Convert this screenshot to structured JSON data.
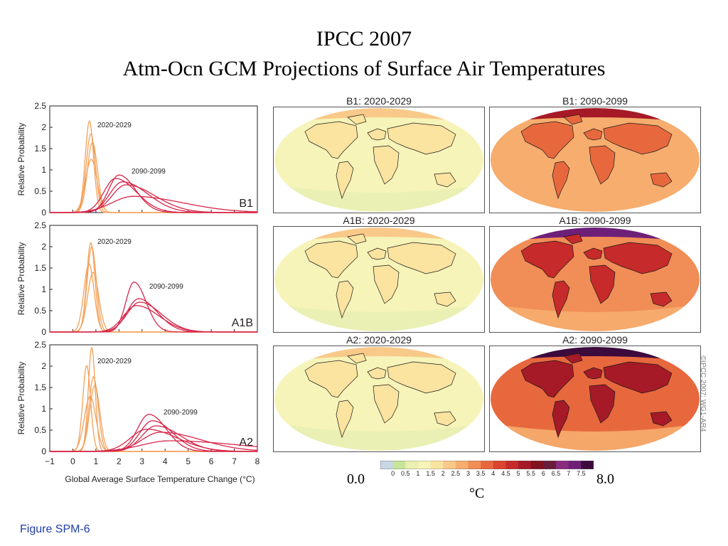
{
  "slide": {
    "title_line1": "IPCC 2007",
    "title_line2": "Atm-Ocn GCM Projections of Surface Air Temperatures",
    "figure_label": "Figure SPM-6",
    "copyright": "©IPCC 2007: WG1-AR4"
  },
  "colors": {
    "near_term": "#f4a15a",
    "late_century": "#d7264a",
    "axis": "#231f20",
    "figure_label": "#1f3ea8"
  },
  "chart_data": [
    {
      "type": "line",
      "scenario": "B1",
      "ylabel": "Relative Probability",
      "xlabel": "Global Average Surface Temperature Change (°C)",
      "xlim": [
        -1,
        8
      ],
      "ylim": [
        0,
        2.5
      ],
      "x_ticks": [
        "−1",
        "0",
        "1",
        "2",
        "3",
        "4",
        "5",
        "6",
        "7",
        "8"
      ],
      "y_ticks": [
        "0",
        "0.5",
        "1",
        "1.5",
        "2",
        "2.5"
      ],
      "series_labels": [
        "2020-2029",
        "2090-2099"
      ],
      "curves": [
        {
          "period": "2020-2029",
          "peak_x": 0.72,
          "peak_y": 2.15,
          "width": 0.18,
          "skew": 1.0
        },
        {
          "period": "2020-2029",
          "peak_x": 0.78,
          "peak_y": 1.85,
          "width": 0.2,
          "skew": 1.0
        },
        {
          "period": "2020-2029",
          "peak_x": 0.85,
          "peak_y": 1.65,
          "width": 0.22,
          "skew": 1.0
        },
        {
          "period": "2020-2029",
          "peak_x": 0.8,
          "peak_y": 1.25,
          "width": 0.25,
          "skew": 1.0
        },
        {
          "period": "2090-2099",
          "peak_x": 2.0,
          "peak_y": 0.88,
          "width": 0.45,
          "skew": 1.6
        },
        {
          "period": "2090-2099",
          "peak_x": 1.85,
          "peak_y": 0.8,
          "width": 0.5,
          "skew": 1.8
        },
        {
          "period": "2090-2099",
          "peak_x": 2.15,
          "peak_y": 0.72,
          "width": 0.55,
          "skew": 2.0
        },
        {
          "period": "2090-2099",
          "peak_x": 2.3,
          "peak_y": 0.65,
          "width": 0.6,
          "skew": 2.1
        },
        {
          "period": "2090-2099",
          "peak_x": 2.6,
          "peak_y": 0.38,
          "width": 0.9,
          "skew": 2.4
        }
      ]
    },
    {
      "type": "line",
      "scenario": "A1B",
      "ylabel": "Relative Probability",
      "xlabel": "Global Average Surface Temperature Change (°C)",
      "xlim": [
        -1,
        8
      ],
      "ylim": [
        0,
        2.5
      ],
      "x_ticks": [
        "−1",
        "0",
        "1",
        "2",
        "3",
        "4",
        "5",
        "6",
        "7",
        "8"
      ],
      "y_ticks": [
        "0",
        "0.5",
        "1",
        "1.5",
        "2",
        "2.5"
      ],
      "series_labels": [
        "2020-2029",
        "2090-2099"
      ],
      "curves": [
        {
          "period": "2020-2029",
          "peak_x": 0.78,
          "peak_y": 2.1,
          "width": 0.18,
          "skew": 1.0
        },
        {
          "period": "2020-2029",
          "peak_x": 0.82,
          "peak_y": 2.0,
          "width": 0.2,
          "skew": 1.0
        },
        {
          "period": "2020-2029",
          "peak_x": 0.7,
          "peak_y": 1.6,
          "width": 0.22,
          "skew": 1.0
        },
        {
          "period": "2020-2029",
          "peak_x": 0.88,
          "peak_y": 1.4,
          "width": 0.24,
          "skew": 1.0
        },
        {
          "period": "2090-2099",
          "peak_x": 2.65,
          "peak_y": 1.17,
          "width": 0.35,
          "skew": 1.5
        },
        {
          "period": "2090-2099",
          "peak_x": 2.85,
          "peak_y": 0.78,
          "width": 0.5,
          "skew": 1.6
        },
        {
          "period": "2090-2099",
          "peak_x": 2.9,
          "peak_y": 0.7,
          "width": 0.55,
          "skew": 1.7
        },
        {
          "period": "2090-2099",
          "peak_x": 2.75,
          "peak_y": 0.62,
          "width": 0.55,
          "skew": 1.8
        }
      ]
    },
    {
      "type": "line",
      "scenario": "A2",
      "ylabel": "Relative Probability",
      "xlabel": "Global Average Surface Temperature Change (°C)",
      "xlim": [
        -1,
        8
      ],
      "ylim": [
        0,
        2.5
      ],
      "x_ticks": [
        "−1",
        "0",
        "1",
        "2",
        "3",
        "4",
        "5",
        "6",
        "7",
        "8"
      ],
      "y_ticks": [
        "0",
        "0.5",
        "1",
        "1.5",
        "2",
        "2.5"
      ],
      "series_labels": [
        "2020-2029",
        "2090-2099"
      ],
      "curves": [
        {
          "period": "2020-2029",
          "peak_x": 0.82,
          "peak_y": 2.45,
          "width": 0.15,
          "skew": 1.0
        },
        {
          "period": "2020-2029",
          "peak_x": 0.6,
          "peak_y": 2.02,
          "width": 0.17,
          "skew": 1.0
        },
        {
          "period": "2020-2029",
          "peak_x": 0.9,
          "peak_y": 1.75,
          "width": 0.2,
          "skew": 1.0
        },
        {
          "period": "2020-2029",
          "peak_x": 0.95,
          "peak_y": 1.55,
          "width": 0.22,
          "skew": 1.0
        },
        {
          "period": "2020-2029",
          "peak_x": 0.75,
          "peak_y": 1.3,
          "width": 0.25,
          "skew": 1.0
        },
        {
          "period": "2090-2099",
          "peak_x": 3.3,
          "peak_y": 0.87,
          "width": 0.5,
          "skew": 1.5
        },
        {
          "period": "2090-2099",
          "peak_x": 3.45,
          "peak_y": 0.72,
          "width": 0.55,
          "skew": 1.6
        },
        {
          "period": "2090-2099",
          "peak_x": 3.6,
          "peak_y": 0.6,
          "width": 0.6,
          "skew": 1.8
        },
        {
          "period": "2090-2099",
          "peak_x": 3.2,
          "peak_y": 0.52,
          "width": 0.7,
          "skew": 1.9
        },
        {
          "period": "2090-2099",
          "peak_x": 3.8,
          "peak_y": 0.45,
          "width": 0.8,
          "skew": 2.2
        },
        {
          "period": "2090-2099",
          "peak_x": 4.2,
          "peak_y": 0.25,
          "width": 1.2,
          "skew": 2.5
        }
      ]
    },
    {
      "type": "heatmap",
      "maps": [
        {
          "title": "B1: 2020-2029",
          "scenario": "B1",
          "period": "2020-2029",
          "typical_warming_c": "0.5–1.5",
          "arctic_warming_c": "1.5–2"
        },
        {
          "title": "B1: 2090-2099",
          "scenario": "B1",
          "period": "2090-2099",
          "typical_warming_c": "2–3",
          "arctic_warming_c": "5–6"
        },
        {
          "title": "A1B: 2020-2029",
          "scenario": "A1B",
          "period": "2020-2029",
          "typical_warming_c": "0.5–1.5",
          "arctic_warming_c": "1.5–2"
        },
        {
          "title": "A1B: 2090-2099",
          "scenario": "A1B",
          "period": "2090-2099",
          "typical_warming_c": "2.5–4.5",
          "arctic_warming_c": "6.5–7"
        },
        {
          "title": "A2: 2020-2029",
          "scenario": "A2",
          "period": "2020-2029",
          "typical_warming_c": "0.5–1.5",
          "arctic_warming_c": "1.5–2"
        },
        {
          "title": "A2: 2090-2099",
          "scenario": "A2",
          "period": "2090-2099",
          "typical_warming_c": "3–5",
          "arctic_warming_c": "7–7.5"
        }
      ],
      "colorbar": {
        "min_label": "0.0",
        "max_label": "8.0",
        "unit": "°C",
        "ticks": [
          "0",
          "0.5",
          "1",
          "1.5",
          "2",
          "2.5",
          "3",
          "3.5",
          "4",
          "4.5",
          "5",
          "5.5",
          "6",
          "6.5",
          "7",
          "7.5"
        ],
        "colors": [
          "#c8d6e6",
          "#c6e59a",
          "#e9f0b2",
          "#f6f4b8",
          "#fbe3a0",
          "#f9c98a",
          "#f6ad6e",
          "#f18d56",
          "#e8683e",
          "#db4530",
          "#c72a2a",
          "#a51a26",
          "#82121f",
          "#6a1c3c",
          "#8a2c7e",
          "#6e2079",
          "#3d0a3d"
        ]
      }
    }
  ]
}
